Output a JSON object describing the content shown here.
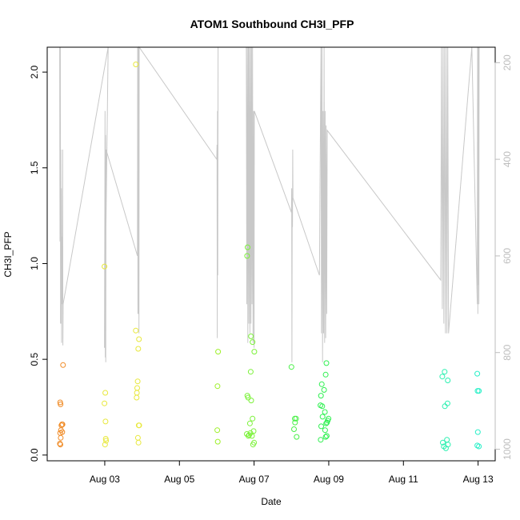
{
  "chart_data": {
    "type": "scatter",
    "title": "ATOM1 Southbound CH3I_PFP",
    "xlabel": "Date",
    "ylabel": "CH3I_PFP",
    "xlim": [
      "2016-08-01T11:00",
      "2016-08-13T11:00"
    ],
    "ylim": [
      -0.03,
      2.13
    ],
    "y_ticks": [
      0.0,
      0.5,
      1.0,
      1.5,
      2.0
    ],
    "y_tick_labels": [
      "0.0",
      "0.5",
      "1.0",
      "1.5",
      "2.0"
    ],
    "x_ticks": [
      "2016-08-03",
      "2016-08-05",
      "2016-08-07",
      "2016-08-09",
      "2016-08-11",
      "2016-08-13"
    ],
    "x_tick_labels": [
      "Aug 03",
      "Aug 05",
      "Aug 07",
      "Aug 09",
      "Aug 11",
      "Aug 13"
    ],
    "y2_ticks": [
      200,
      400,
      600,
      800,
      1000
    ],
    "y2_tick_labels": [
      "200",
      "400",
      "600",
      "800",
      "1000"
    ],
    "y2lim": [
      1024,
      168
    ],
    "grid": false,
    "points": [
      {
        "x": "2016-08-01T19:12",
        "y": 0.06,
        "color": "#f08a24"
      },
      {
        "x": "2016-08-01T19:30",
        "y": 0.055,
        "color": "#f08a24"
      },
      {
        "x": "2016-08-01T19:40",
        "y": 0.09,
        "color": "#f08a24"
      },
      {
        "x": "2016-08-01T19:20",
        "y": 0.115,
        "color": "#f08a24"
      },
      {
        "x": "2016-08-01T19:50",
        "y": 0.13,
        "color": "#f08a24"
      },
      {
        "x": "2016-08-01T20:10",
        "y": 0.155,
        "color": "#f08a24"
      },
      {
        "x": "2016-08-01T20:30",
        "y": 0.16,
        "color": "#f08a24"
      },
      {
        "x": "2016-08-01T20:50",
        "y": 0.16,
        "color": "#f08a24"
      },
      {
        "x": "2016-08-01T20:40",
        "y": 0.12,
        "color": "#f08a24"
      },
      {
        "x": "2016-08-01T19:20",
        "y": 0.275,
        "color": "#f08a24"
      },
      {
        "x": "2016-08-01T19:35",
        "y": 0.265,
        "color": "#f08a24"
      },
      {
        "x": "2016-08-01T21:10",
        "y": 0.47,
        "color": "#f08a24"
      },
      {
        "x": "2016-08-02T23:50",
        "y": 0.985,
        "color": "#e8e83c"
      },
      {
        "x": "2016-08-02T23:50",
        "y": 0.27,
        "color": "#e8e83c"
      },
      {
        "x": "2016-08-03T00:20",
        "y": 0.325,
        "color": "#e8e83c"
      },
      {
        "x": "2016-08-03T00:30",
        "y": 0.175,
        "color": "#e8e83c"
      },
      {
        "x": "2016-08-03T00:40",
        "y": 0.085,
        "color": "#e8e83c"
      },
      {
        "x": "2016-08-03T00:50",
        "y": 0.075,
        "color": "#e8e83c"
      },
      {
        "x": "2016-08-03T00:10",
        "y": 0.055,
        "color": "#e8e83c"
      },
      {
        "x": "2016-08-03T20:00",
        "y": 2.04,
        "color": "#e8e83c"
      },
      {
        "x": "2016-08-03T20:00",
        "y": 0.65,
        "color": "#e8e83c"
      },
      {
        "x": "2016-08-03T22:00",
        "y": 0.605,
        "color": "#e8e83c"
      },
      {
        "x": "2016-08-03T21:30",
        "y": 0.555,
        "color": "#e8e83c"
      },
      {
        "x": "2016-08-03T21:10",
        "y": 0.385,
        "color": "#e8e83c"
      },
      {
        "x": "2016-08-03T20:50",
        "y": 0.35,
        "color": "#e8e83c"
      },
      {
        "x": "2016-08-03T20:40",
        "y": 0.325,
        "color": "#e8e83c"
      },
      {
        "x": "2016-08-03T20:30",
        "y": 0.3,
        "color": "#e8e83c"
      },
      {
        "x": "2016-08-03T21:50",
        "y": 0.155,
        "color": "#e8e83c"
      },
      {
        "x": "2016-08-03T22:10",
        "y": 0.155,
        "color": "#e8e83c"
      },
      {
        "x": "2016-08-03T21:20",
        "y": 0.09,
        "color": "#e8e83c"
      },
      {
        "x": "2016-08-03T21:40",
        "y": 0.065,
        "color": "#e8e83c"
      },
      {
        "x": "2016-08-06T00:50",
        "y": 0.54,
        "color": "#9ef02a"
      },
      {
        "x": "2016-08-06T00:30",
        "y": 0.36,
        "color": "#9ef02a"
      },
      {
        "x": "2016-08-06T00:20",
        "y": 0.13,
        "color": "#9ef02a"
      },
      {
        "x": "2016-08-06T00:40",
        "y": 0.07,
        "color": "#9ef02a"
      },
      {
        "x": "2016-08-06T19:50",
        "y": 1.085,
        "color": "#7cf23a"
      },
      {
        "x": "2016-08-06T19:30",
        "y": 1.04,
        "color": "#7cf23a"
      },
      {
        "x": "2016-08-06T22:00",
        "y": 0.62,
        "color": "#7cf23a"
      },
      {
        "x": "2016-08-06T23:00",
        "y": 0.59,
        "color": "#7cf23a"
      },
      {
        "x": "2016-08-07T00:10",
        "y": 0.54,
        "color": "#7cf23a"
      },
      {
        "x": "2016-08-06T21:50",
        "y": 0.435,
        "color": "#7cf23a"
      },
      {
        "x": "2016-08-06T19:40",
        "y": 0.31,
        "color": "#7cf23a"
      },
      {
        "x": "2016-08-06T20:10",
        "y": 0.3,
        "color": "#7cf23a"
      },
      {
        "x": "2016-08-06T22:10",
        "y": 0.285,
        "color": "#7cf23a"
      },
      {
        "x": "2016-08-06T23:00",
        "y": 0.19,
        "color": "#7cf23a"
      },
      {
        "x": "2016-08-06T21:20",
        "y": 0.165,
        "color": "#7cf23a"
      },
      {
        "x": "2016-08-06T23:40",
        "y": 0.125,
        "color": "#7cf23a"
      },
      {
        "x": "2016-08-06T19:20",
        "y": 0.11,
        "color": "#7cf23a"
      },
      {
        "x": "2016-08-06T20:20",
        "y": 0.1,
        "color": "#7cf23a"
      },
      {
        "x": "2016-08-06T20:50",
        "y": 0.105,
        "color": "#7cf23a"
      },
      {
        "x": "2016-08-06T21:40",
        "y": 0.115,
        "color": "#7cf23a"
      },
      {
        "x": "2016-08-06T22:40",
        "y": 0.1,
        "color": "#7cf23a"
      },
      {
        "x": "2016-08-07T00:00",
        "y": 0.065,
        "color": "#7cf23a"
      },
      {
        "x": "2016-08-06T23:20",
        "y": 0.055,
        "color": "#7cf23a"
      },
      {
        "x": "2016-08-08T00:00",
        "y": 0.46,
        "color": "#4af048"
      },
      {
        "x": "2016-08-08T02:10",
        "y": 0.19,
        "color": "#4af048"
      },
      {
        "x": "2016-08-08T03:00",
        "y": 0.19,
        "color": "#4af048"
      },
      {
        "x": "2016-08-08T02:20",
        "y": 0.17,
        "color": "#4af048"
      },
      {
        "x": "2016-08-08T01:40",
        "y": 0.135,
        "color": "#4af048"
      },
      {
        "x": "2016-08-08T03:20",
        "y": 0.095,
        "color": "#4af048"
      },
      {
        "x": "2016-08-08T22:30",
        "y": 0.48,
        "color": "#2ef050"
      },
      {
        "x": "2016-08-08T22:00",
        "y": 0.42,
        "color": "#2ef050"
      },
      {
        "x": "2016-08-08T19:30",
        "y": 0.37,
        "color": "#2ef050"
      },
      {
        "x": "2016-08-08T21:00",
        "y": 0.34,
        "color": "#2ef050"
      },
      {
        "x": "2016-08-08T19:00",
        "y": 0.31,
        "color": "#2ef050"
      },
      {
        "x": "2016-08-08T18:40",
        "y": 0.26,
        "color": "#2ef050"
      },
      {
        "x": "2016-08-08T19:50",
        "y": 0.255,
        "color": "#2ef050"
      },
      {
        "x": "2016-08-08T21:30",
        "y": 0.225,
        "color": "#2ef050"
      },
      {
        "x": "2016-08-08T20:00",
        "y": 0.2,
        "color": "#2ef050"
      },
      {
        "x": "2016-08-08T23:50",
        "y": 0.19,
        "color": "#2ef050"
      },
      {
        "x": "2016-08-08T23:20",
        "y": 0.18,
        "color": "#2ef050"
      },
      {
        "x": "2016-08-08T22:50",
        "y": 0.17,
        "color": "#2ef050"
      },
      {
        "x": "2016-08-08T22:20",
        "y": 0.165,
        "color": "#2ef050"
      },
      {
        "x": "2016-08-08T19:10",
        "y": 0.15,
        "color": "#2ef050"
      },
      {
        "x": "2016-08-08T21:40",
        "y": 0.13,
        "color": "#2ef050"
      },
      {
        "x": "2016-08-08T22:40",
        "y": 0.1,
        "color": "#2ef050"
      },
      {
        "x": "2016-08-08T22:00",
        "y": 0.095,
        "color": "#2ef050"
      },
      {
        "x": "2016-08-08T18:50",
        "y": 0.08,
        "color": "#2ef050"
      },
      {
        "x": "2016-08-12T02:30",
        "y": 0.435,
        "color": "#2af0b0"
      },
      {
        "x": "2016-08-12T01:00",
        "y": 0.41,
        "color": "#2af0b0"
      },
      {
        "x": "2016-08-12T04:30",
        "y": 0.39,
        "color": "#2af0b0"
      },
      {
        "x": "2016-08-12T04:20",
        "y": 0.27,
        "color": "#2af0b0"
      },
      {
        "x": "2016-08-12T02:40",
        "y": 0.255,
        "color": "#2af0b0"
      },
      {
        "x": "2016-08-12T04:00",
        "y": 0.08,
        "color": "#2af0b0"
      },
      {
        "x": "2016-08-12T01:20",
        "y": 0.065,
        "color": "#2af0b0"
      },
      {
        "x": "2016-08-12T04:40",
        "y": 0.055,
        "color": "#2af0b0"
      },
      {
        "x": "2016-08-12T02:00",
        "y": 0.045,
        "color": "#2af0b0"
      },
      {
        "x": "2016-08-12T03:20",
        "y": 0.035,
        "color": "#2af0b0"
      },
      {
        "x": "2016-08-12T23:30",
        "y": 0.425,
        "color": "#2af0c8"
      },
      {
        "x": "2016-08-12T23:40",
        "y": 0.335,
        "color": "#2af0c8"
      },
      {
        "x": "2016-08-13T00:30",
        "y": 0.335,
        "color": "#2af0c8"
      },
      {
        "x": "2016-08-12T23:50",
        "y": 0.12,
        "color": "#2af0c8"
      },
      {
        "x": "2016-08-12T23:30",
        "y": 0.05,
        "color": "#2af0c8"
      },
      {
        "x": "2016-08-13T00:30",
        "y": 0.045,
        "color": "#2af0c8"
      }
    ],
    "line_color": "#c8c8c8",
    "line_y2": [
      {
        "x": "2016-08-01T19:00",
        "y2": 168
      },
      {
        "x": "2016-08-01T19:15",
        "y2": 570
      },
      {
        "x": "2016-08-01T19:25",
        "y2": 168
      },
      {
        "x": "2016-08-01T19:35",
        "y2": 740
      },
      {
        "x": "2016-08-01T19:45",
        "y2": 380
      },
      {
        "x": "2016-08-01T19:55",
        "y2": 740
      },
      {
        "x": "2016-08-01T20:05",
        "y2": 460
      },
      {
        "x": "2016-08-01T20:15",
        "y2": 780
      },
      {
        "x": "2016-08-01T20:25",
        "y2": 560
      },
      {
        "x": "2016-08-01T20:40",
        "y2": 700
      },
      {
        "x": "2016-08-01T20:55",
        "y2": 380
      },
      {
        "x": "2016-08-01T21:05",
        "y2": 785
      },
      {
        "x": "2016-08-01T21:15",
        "y2": 700
      },
      {
        "x": "2016-08-03T02:10",
        "y2": 168
      },
      {
        "x": "2016-08-02T23:50",
        "y2": 790
      },
      {
        "x": "2016-08-03T00:10",
        "y2": 300
      },
      {
        "x": "2016-08-03T00:20",
        "y2": 810
      },
      {
        "x": "2016-08-03T00:30",
        "y2": 350
      },
      {
        "x": "2016-08-03T00:40",
        "y2": 820
      },
      {
        "x": "2016-08-03T00:50",
        "y2": 380
      },
      {
        "x": "2016-08-03T21:00",
        "y2": 600
      },
      {
        "x": "2016-08-03T21:10",
        "y2": 168
      },
      {
        "x": "2016-08-03T21:20",
        "y2": 720
      },
      {
        "x": "2016-08-03T21:30",
        "y2": 168
      },
      {
        "x": "2016-08-03T21:40",
        "y2": 720
      },
      {
        "x": "2016-08-03T21:50",
        "y2": 168
      },
      {
        "x": "2016-08-03T22:00",
        "y2": 760
      },
      {
        "x": "2016-08-03T22:10",
        "y2": 168
      },
      {
        "x": "2016-08-06T00:00",
        "y2": 400
      },
      {
        "x": "2016-08-06T00:10",
        "y2": 370
      },
      {
        "x": "2016-08-06T00:20",
        "y2": 770
      },
      {
        "x": "2016-08-06T00:30",
        "y2": 300
      },
      {
        "x": "2016-08-06T00:40",
        "y2": 640
      },
      {
        "x": "2016-08-06T00:50",
        "y2": 168
      },
      {
        "x": "2016-08-06T19:00",
        "y2": 168
      },
      {
        "x": "2016-08-06T19:20",
        "y2": 700
      },
      {
        "x": "2016-08-06T19:40",
        "y2": 168
      },
      {
        "x": "2016-08-06T20:00",
        "y2": 780
      },
      {
        "x": "2016-08-06T20:20",
        "y2": 168
      },
      {
        "x": "2016-08-06T20:40",
        "y2": 740
      },
      {
        "x": "2016-08-06T21:00",
        "y2": 168
      },
      {
        "x": "2016-08-06T21:20",
        "y2": 760
      },
      {
        "x": "2016-08-06T21:40",
        "y2": 168
      },
      {
        "x": "2016-08-06T22:00",
        "y2": 740
      },
      {
        "x": "2016-08-06T22:20",
        "y2": 168
      },
      {
        "x": "2016-08-06T22:40",
        "y2": 700
      },
      {
        "x": "2016-08-06T23:00",
        "y2": 168
      },
      {
        "x": "2016-08-06T23:20",
        "y2": 780
      },
      {
        "x": "2016-08-06T23:40",
        "y2": 300
      },
      {
        "x": "2016-08-07T00:00",
        "y2": 790
      },
      {
        "x": "2016-08-07T00:10",
        "y2": 300
      },
      {
        "x": "2016-08-08T00:00",
        "y2": 510
      },
      {
        "x": "2016-08-08T00:10",
        "y2": 460
      },
      {
        "x": "2016-08-08T00:20",
        "y2": 820
      },
      {
        "x": "2016-08-08T00:30",
        "y2": 480
      },
      {
        "x": "2016-08-08T00:40",
        "y2": 540
      },
      {
        "x": "2016-08-08T00:50",
        "y2": 380
      },
      {
        "x": "2016-08-08T01:00",
        "y2": 480
      },
      {
        "x": "2016-08-08T18:00",
        "y2": 640
      },
      {
        "x": "2016-08-08T19:00",
        "y2": 168
      },
      {
        "x": "2016-08-08T19:20",
        "y2": 760
      },
      {
        "x": "2016-08-08T19:40",
        "y2": 168
      },
      {
        "x": "2016-08-08T20:00",
        "y2": 820
      },
      {
        "x": "2016-08-08T20:20",
        "y2": 300
      },
      {
        "x": "2016-08-08T20:40",
        "y2": 760
      },
      {
        "x": "2016-08-08T21:00",
        "y2": 168
      },
      {
        "x": "2016-08-08T21:20",
        "y2": 780
      },
      {
        "x": "2016-08-08T21:40",
        "y2": 300
      },
      {
        "x": "2016-08-08T22:00",
        "y2": 770
      },
      {
        "x": "2016-08-08T22:20",
        "y2": 330
      },
      {
        "x": "2016-08-08T22:40",
        "y2": 720
      },
      {
        "x": "2016-08-08T23:00",
        "y2": 340
      },
      {
        "x": "2016-08-12T00:00",
        "y2": 650
      },
      {
        "x": "2016-08-12T00:30",
        "y2": 168
      },
      {
        "x": "2016-08-12T01:00",
        "y2": 710
      },
      {
        "x": "2016-08-12T01:30",
        "y2": 168
      },
      {
        "x": "2016-08-12T02:00",
        "y2": 740
      },
      {
        "x": "2016-08-12T02:30",
        "y2": 168
      },
      {
        "x": "2016-08-12T03:00",
        "y2": 760
      },
      {
        "x": "2016-08-12T03:30",
        "y2": 168
      },
      {
        "x": "2016-08-12T04:00",
        "y2": 760
      },
      {
        "x": "2016-08-12T04:30",
        "y2": 168
      },
      {
        "x": "2016-08-12T05:00",
        "y2": 760
      },
      {
        "x": "2016-08-12T20:00",
        "y2": 168
      },
      {
        "x": "2016-08-12T23:30",
        "y2": 700
      },
      {
        "x": "2016-08-12T23:40",
        "y2": 168
      },
      {
        "x": "2016-08-12T23:50",
        "y2": 720
      },
      {
        "x": "2016-08-13T00:00",
        "y2": 168
      },
      {
        "x": "2016-08-13T00:10",
        "y2": 660
      },
      {
        "x": "2016-08-13T00:20",
        "y2": 168
      },
      {
        "x": "2016-08-13T00:30",
        "y2": 700
      },
      {
        "x": "2016-08-13T00:40",
        "y2": 168
      }
    ]
  }
}
